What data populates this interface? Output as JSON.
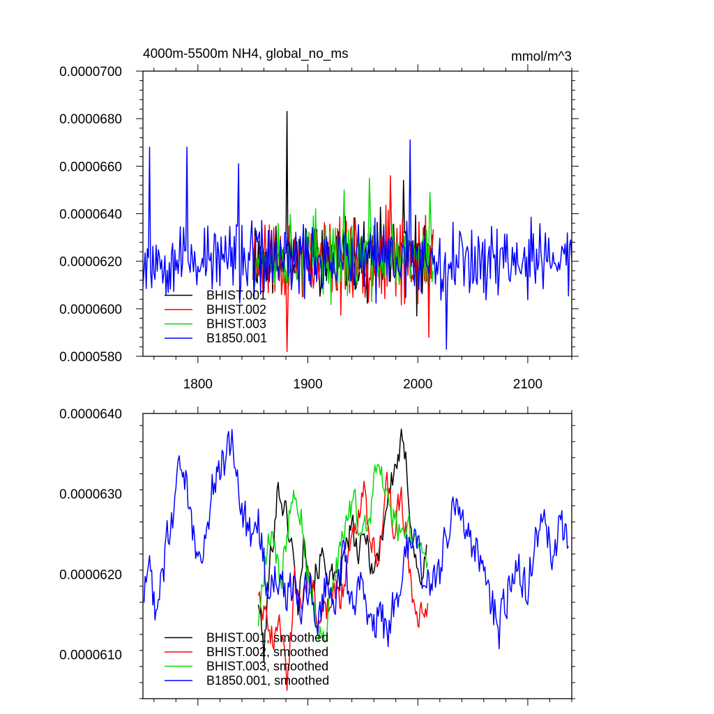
{
  "chart_data": [
    {
      "type": "line",
      "title": "4000m-5500m NH4, global_no_ms",
      "units": "mmol/m^3",
      "xlim": [
        1750,
        2140
      ],
      "ylim": [
        5.8e-05,
        7e-05
      ],
      "x_ticks": [
        1800,
        1900,
        2000,
        2100
      ],
      "y_ticks": [
        "0.0000580",
        "0.0000600",
        "0.0000620",
        "0.0000640",
        "0.0000660",
        "0.0000680",
        "0.0000700"
      ],
      "grid": false,
      "legend_position": "bottom-left",
      "series": [
        {
          "name": "BHIST.001",
          "color": "#000000",
          "x_start": 1850,
          "x_end": 2014,
          "mean": 6.22e-05,
          "amp": 1.2e-06,
          "seed": 11,
          "events": [
            [
              1881,
              6.83e-05
            ],
            [
              1987,
              6.54e-05
            ],
            [
              1999,
              5.97e-05
            ]
          ]
        },
        {
          "name": "BHIST.002",
          "color": "#ff0000",
          "x_start": 1850,
          "x_end": 2014,
          "mean": 6.21e-05,
          "amp": 1.3e-06,
          "seed": 23,
          "events": [
            [
              1881,
              5.82e-05
            ],
            [
              1975,
              6.56e-05
            ],
            [
              2010,
              5.88e-05
            ]
          ]
        },
        {
          "name": "BHIST.003",
          "color": "#00dd00",
          "x_start": 1850,
          "x_end": 2014,
          "mean": 6.22e-05,
          "amp": 1.2e-06,
          "seed": 37,
          "events": [
            [
              1933,
              6.5e-05
            ],
            [
              1956,
              6.55e-05
            ],
            [
              2011,
              6.49e-05
            ]
          ]
        },
        {
          "name": "B1850.001",
          "color": "#0000ff",
          "x_start": 1750,
          "x_end": 2140,
          "mean": 6.21e-05,
          "amp": 1.2e-06,
          "seed": 53,
          "events": [
            [
              1756,
              6.68e-05
            ],
            [
              1790,
              6.68e-05
            ],
            [
              1837,
              6.61e-05
            ],
            [
              1993,
              6.71e-05
            ],
            [
              2026,
              5.83e-05
            ]
          ]
        }
      ]
    },
    {
      "type": "line",
      "title": "",
      "xlim": [
        1750,
        2140
      ],
      "ylim": [
        6.045e-05,
        6.4e-05
      ],
      "x_ticks": [
        1800,
        1900,
        2000,
        2100
      ],
      "x_tick_labels_shown": false,
      "y_ticks": [
        "0.0000610",
        "0.0000620",
        "0.0000630",
        "0.0000640"
      ],
      "grid": false,
      "legend_position": "bottom-left",
      "series": [
        {
          "name": "BHIST.001, smoothed",
          "color": "#000000",
          "seed": 101,
          "noise": 1.8e-07,
          "points": [
            [
              1855,
              6.17e-05
            ],
            [
              1860,
              6.1e-05
            ],
            [
              1866,
              6.22e-05
            ],
            [
              1873,
              6.31e-05
            ],
            [
              1879,
              6.28e-05
            ],
            [
              1885,
              6.24e-05
            ],
            [
              1891,
              6.16e-05
            ],
            [
              1897,
              6.25e-05
            ],
            [
              1904,
              6.19e-05
            ],
            [
              1912,
              6.22e-05
            ],
            [
              1920,
              6.2e-05
            ],
            [
              1926,
              6.18e-05
            ],
            [
              1933,
              6.22e-05
            ],
            [
              1940,
              6.26e-05
            ],
            [
              1946,
              6.22e-05
            ],
            [
              1953,
              6.25e-05
            ],
            [
              1960,
              6.2e-05
            ],
            [
              1966,
              6.24e-05
            ],
            [
              1972,
              6.29e-05
            ],
            [
              1979,
              6.33e-05
            ],
            [
              1985,
              6.36e-05
            ],
            [
              1990,
              6.33e-05
            ],
            [
              1995,
              6.25e-05
            ],
            [
              2001,
              6.19e-05
            ],
            [
              2008,
              6.22e-05
            ]
          ]
        },
        {
          "name": "BHIST.002, smoothed",
          "color": "#ff0000",
          "seed": 202,
          "noise": 1.8e-07,
          "points": [
            [
              1855,
              6.18e-05
            ],
            [
              1861,
              6.16e-05
            ],
            [
              1868,
              6.12e-05
            ],
            [
              1875,
              6.14e-05
            ],
            [
              1881,
              6.07e-05
            ],
            [
              1888,
              6.19e-05
            ],
            [
              1895,
              6.17e-05
            ],
            [
              1902,
              6.21e-05
            ],
            [
              1909,
              6.14e-05
            ],
            [
              1916,
              6.15e-05
            ],
            [
              1923,
              6.19e-05
            ],
            [
              1930,
              6.17e-05
            ],
            [
              1937,
              6.22e-05
            ],
            [
              1944,
              6.26e-05
            ],
            [
              1951,
              6.31e-05
            ],
            [
              1957,
              6.24e-05
            ],
            [
              1964,
              6.22e-05
            ],
            [
              1971,
              6.32e-05
            ],
            [
              1978,
              6.26e-05
            ],
            [
              1985,
              6.3e-05
            ],
            [
              1991,
              6.23e-05
            ],
            [
              1997,
              6.16e-05
            ],
            [
              2003,
              6.15e-05
            ],
            [
              2009,
              6.17e-05
            ]
          ]
        },
        {
          "name": "BHIST.003, smoothed",
          "color": "#00dd00",
          "seed": 303,
          "noise": 1.8e-07,
          "points": [
            [
              1855,
              6.14e-05
            ],
            [
              1861,
              6.21e-05
            ],
            [
              1868,
              6.26e-05
            ],
            [
              1875,
              6.18e-05
            ],
            [
              1881,
              6.25e-05
            ],
            [
              1887,
              6.32e-05
            ],
            [
              1894,
              6.27e-05
            ],
            [
              1900,
              6.2e-05
            ],
            [
              1907,
              6.15e-05
            ],
            [
              1914,
              6.11e-05
            ],
            [
              1921,
              6.18e-05
            ],
            [
              1928,
              6.22e-05
            ],
            [
              1935,
              6.26e-05
            ],
            [
              1942,
              6.29e-05
            ],
            [
              1949,
              6.24e-05
            ],
            [
              1956,
              6.27e-05
            ],
            [
              1962,
              6.33e-05
            ],
            [
              1969,
              6.32e-05
            ],
            [
              1976,
              6.28e-05
            ],
            [
              1983,
              6.25e-05
            ],
            [
              1990,
              6.27e-05
            ],
            [
              1996,
              6.23e-05
            ],
            [
              2003,
              6.24e-05
            ],
            [
              2009,
              6.22e-05
            ]
          ]
        },
        {
          "name": "B1850.001, smoothed",
          "color": "#0000ff",
          "seed": 404,
          "noise": 2.5e-07,
          "points": [
            [
              1751,
              6.17e-05
            ],
            [
              1756,
              6.21e-05
            ],
            [
              1761,
              6.16e-05
            ],
            [
              1766,
              6.19e-05
            ],
            [
              1772,
              6.24e-05
            ],
            [
              1778,
              6.28e-05
            ],
            [
              1783,
              6.34e-05
            ],
            [
              1789,
              6.31e-05
            ],
            [
              1795,
              6.26e-05
            ],
            [
              1801,
              6.21e-05
            ],
            [
              1807,
              6.25e-05
            ],
            [
              1813,
              6.3e-05
            ],
            [
              1819,
              6.33e-05
            ],
            [
              1825,
              6.34e-05
            ],
            [
              1831,
              6.37e-05
            ],
            [
              1837,
              6.3e-05
            ],
            [
              1843,
              6.27e-05
            ],
            [
              1849,
              6.24e-05
            ],
            [
              1855,
              6.26e-05
            ],
            [
              1862,
              6.19e-05
            ],
            [
              1870,
              6.21e-05
            ],
            [
              1878,
              6.17e-05
            ],
            [
              1886,
              6.18e-05
            ],
            [
              1894,
              6.15e-05
            ],
            [
              1902,
              6.19e-05
            ],
            [
              1910,
              6.14e-05
            ],
            [
              1917,
              6.2e-05
            ],
            [
              1924,
              6.18e-05
            ],
            [
              1932,
              6.21e-05
            ],
            [
              1940,
              6.17e-05
            ],
            [
              1948,
              6.19e-05
            ],
            [
              1956,
              6.12e-05
            ],
            [
              1964,
              6.15e-05
            ],
            [
              1972,
              6.13e-05
            ],
            [
              1980,
              6.17e-05
            ],
            [
              1988,
              6.22e-05
            ],
            [
              1996,
              6.24e-05
            ],
            [
              2004,
              6.2e-05
            ],
            [
              2012,
              6.18e-05
            ],
            [
              2020,
              6.2e-05
            ],
            [
              2028,
              6.26e-05
            ],
            [
              2036,
              6.29e-05
            ],
            [
              2043,
              6.25e-05
            ],
            [
              2050,
              6.24e-05
            ],
            [
              2058,
              6.21e-05
            ],
            [
              2066,
              6.17e-05
            ],
            [
              2074,
              6.13e-05
            ],
            [
              2082,
              6.18e-05
            ],
            [
              2090,
              6.22e-05
            ],
            [
              2098,
              6.18e-05
            ],
            [
              2106,
              6.24e-05
            ],
            [
              2114,
              6.27e-05
            ],
            [
              2122,
              6.22e-05
            ],
            [
              2130,
              6.26e-05
            ],
            [
              2137,
              6.24e-05
            ]
          ]
        }
      ]
    }
  ]
}
